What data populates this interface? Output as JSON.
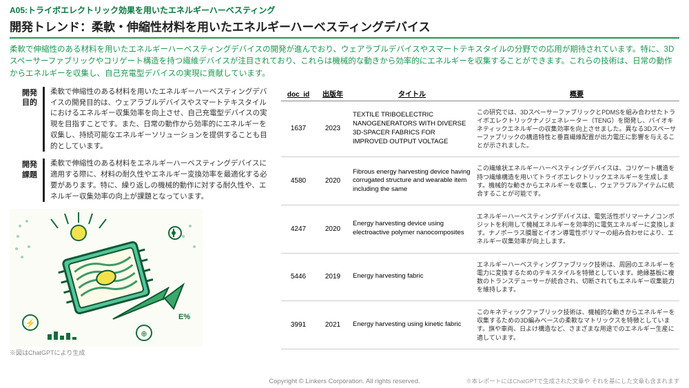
{
  "header": {
    "category": "A05:トライボエレクトリック効果を用いたエネルギーハーベスティング",
    "title": "開発トレンド：柔軟・伸縮性材料を用いたエネルギーハーベスティングデバイス"
  },
  "intro": "柔軟で伸縮性のある材料を用いたエネルギーハーベスティングデバイスの開発が進んでおり、ウェアラブルデバイスやスマートテキスタイルの分野での応用が期待されています。特に、3Dスペーサーファブリックやコリゲート構造を持つ繊維デバイスが注目されており、これらは機械的な動きから効率的にエネルギーを収集することができます。これらの技術は、日常の動作からエネルギーを収集し、自己充電型デバイスの実現に貢献しています。",
  "info": {
    "purpose_label": "開発\n目的",
    "purpose_text": "柔軟で伸縮性のある材料を用いたエネルギーハーベスティングデバイスの開発目的は、ウェアラブルデバイスやスマートテキスタイルにおけるエネルギー収集効率を向上させ、自己充電型デバイスの実現を目指すことです。また、日常の動作から効率的にエネルギーを収集し、持続可能なエネルギーソリューションを提供することも目的としています。",
    "issue_label": "開発\n課題",
    "issue_text": "柔軟で伸縮性のある材料をエネルギーハーベスティングデバイスに適用する際に、材料の耐久性やエネルギー変換効率を最適化する必要があります。特に、繰り返しの機械的動作に対する耐久性や、エネルギー収集効率の向上が課題となっています。"
  },
  "illus_note": "※図はChatGPTにより生成",
  "table": {
    "columns": [
      "doc_id",
      "出版年",
      "タイトル",
      "概要"
    ],
    "rows": [
      {
        "doc_id": "1637",
        "year": "2023",
        "title": "TEXTILE TRIBOELECTRIC NANOGENERATORS WITH DIVERSE 3D-SPACER FABRICS FOR IMPROVED OUTPUT VOLTAGE",
        "summary": "この研究では、3DスペーサーファブリックとPDMSを組み合わせたトライボエレクトリックナノジェネレーター（TENG）を開発し、バイオキネティックエネルギーの収集効率を向上させました。異なる3Dスペーサーファブリックの構造特性と垂直繊維配置が出力電圧に影響を与えることが示されました。"
      },
      {
        "doc_id": "4580",
        "year": "2020",
        "title": "Fibrous energy harvesting device having corrugated structure and wearable item including the same",
        "summary": "この繊維状エネルギーハーベスティングデバイスは、コリゲート構造を持つ繊維構造を用いてトライボエレクトリックエネルギーを生成します。機械的な動きからエネルギーを収集し、ウェアラブルアイテムに統合することが可能です。"
      },
      {
        "doc_id": "4247",
        "year": "2020",
        "title": "Energy harvesting device using electroactive polymer nanocomposites",
        "summary": "エネルギーハーベスティングデバイスは、電気活性ポリマーナノコンポジットを利用して機械エネルギーを効率的に電気エネルギーに変換します。ナノポーラス膜層とイオン導電性ポリマーの組み合わせにより、エネルギー収集効率が向上します。"
      },
      {
        "doc_id": "5446",
        "year": "2019",
        "title": "Energy harvesting fabric",
        "summary": "エネルギーハーベスティングファブリック技術は、周囲のエネルギーを電力に変換するためのテキスタイルを特徴としています。絶縁基板に複数のトランスデューサーが統合され、切断されてもエネルギー収集能力を維持します。"
      },
      {
        "doc_id": "3991",
        "year": "2021",
        "title": "Energy harvesting using kinetic fabric",
        "summary": "このキネティックファブリック技術は、機械的な動きからエネルギーを収集するための3D編みベースの柔軟なマトリックスを特徴としています。旗や車両、日よけ構造など、さまざまな用途でのエネルギー生産に適しています。"
      }
    ]
  },
  "footer": {
    "copyright": "Copyright © Linkers Corporation. All rights reserved.",
    "note": "※本レポートにはChatGPTで生成された文章や それを基にした文章も含まれます"
  },
  "colors": {
    "accent": "#1a9950",
    "text": "#222222",
    "muted": "#888888"
  }
}
